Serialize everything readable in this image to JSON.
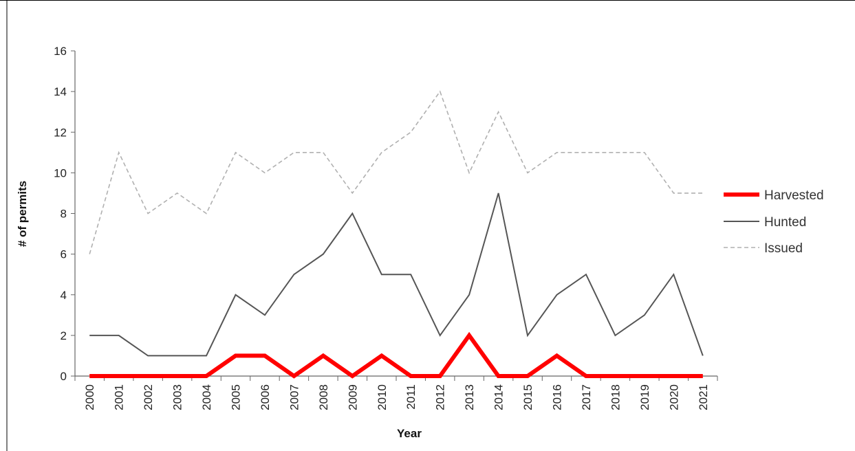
{
  "chart_data": {
    "type": "line",
    "xlabel": "Year",
    "ylabel": "# of permits",
    "ylim": [
      0,
      16
    ],
    "yticks": [
      "0",
      "2",
      "4",
      "6",
      "8",
      "10",
      "12",
      "14",
      "16"
    ],
    "categories": [
      "2000",
      "2001",
      "2002",
      "2003",
      "2004",
      "2005",
      "2006",
      "2007",
      "2008",
      "2009",
      "2010",
      "2011",
      "2012",
      "2013",
      "2014",
      "2015",
      "2016",
      "2017",
      "2018",
      "2019",
      "2020",
      "2021"
    ],
    "legend_position": "right",
    "grid": false,
    "series": [
      {
        "name": "Harvested",
        "color": "#ff0000",
        "style": "solid-thick",
        "values": [
          0,
          0,
          0,
          0,
          0,
          1,
          1,
          0,
          1,
          0,
          1,
          0,
          0,
          2,
          0,
          0,
          1,
          0,
          0,
          0,
          0,
          0
        ]
      },
      {
        "name": "Hunted",
        "color": "#555555",
        "style": "solid",
        "values": [
          2,
          2,
          1,
          1,
          1,
          4,
          3,
          5,
          6,
          8,
          5,
          5,
          2,
          4,
          9,
          2,
          4,
          5,
          2,
          3,
          5,
          1
        ]
      },
      {
        "name": "Issued",
        "color": "#b0b0b0",
        "style": "dashed",
        "values": [
          6,
          11,
          8,
          9,
          8,
          11,
          10,
          11,
          11,
          9,
          11,
          12,
          14,
          10,
          13,
          10,
          11,
          11,
          11,
          11,
          9,
          9
        ]
      }
    ]
  }
}
